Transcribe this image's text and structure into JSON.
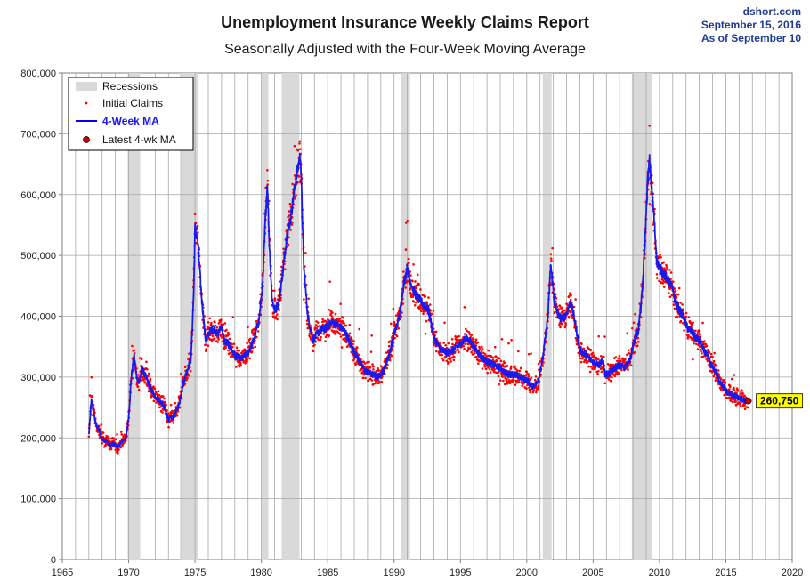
{
  "chart_data": {
    "type": "line",
    "title": "Unemployment Insurance Weekly Claims Report",
    "subtitle": "Seasonally Adjusted with the Four-Week Moving Average",
    "source_lines": [
      "dshort.com",
      "September 15, 2016",
      "As of September 10"
    ],
    "xlim": [
      1965,
      2020
    ],
    "ylim": [
      0,
      800000
    ],
    "x_ticks": [
      1965,
      1970,
      1975,
      1980,
      1985,
      1990,
      1995,
      2000,
      2005,
      2010,
      2015,
      2020
    ],
    "y_ticks": [
      0,
      100000,
      200000,
      300000,
      400000,
      500000,
      600000,
      700000,
      800000
    ],
    "y_tick_labels": [
      "0",
      "100,000",
      "200,000",
      "300,000",
      "400,000",
      "500,000",
      "600,000",
      "700,000",
      "800,000"
    ],
    "grid": true,
    "legend_position": "top-left",
    "recessions": [
      [
        1969.92,
        1970.87
      ],
      [
        1973.87,
        1975.2
      ],
      [
        1980.0,
        1980.53
      ],
      [
        1981.53,
        1982.87
      ],
      [
        1990.53,
        1991.2
      ],
      [
        2001.2,
        2001.87
      ],
      [
        2007.92,
        2009.45
      ]
    ],
    "series": [
      {
        "name": "4-Week MA",
        "x": [
          1967.0,
          1967.2,
          1967.5,
          1967.8,
          1968.0,
          1968.3,
          1968.6,
          1968.9,
          1969.2,
          1969.5,
          1969.8,
          1970.0,
          1970.2,
          1970.4,
          1970.6,
          1970.8,
          1971.0,
          1971.3,
          1971.6,
          1971.9,
          1972.2,
          1972.6,
          1973.0,
          1973.4,
          1973.8,
          1974.1,
          1974.4,
          1974.7,
          1974.9,
          1975.0,
          1975.2,
          1975.5,
          1975.8,
          1976.1,
          1976.4,
          1976.7,
          1977.0,
          1977.2,
          1977.5,
          1978.0,
          1978.5,
          1979.0,
          1979.4,
          1979.8,
          1980.1,
          1980.3,
          1980.45,
          1980.6,
          1980.8,
          1981.0,
          1981.3,
          1981.6,
          1981.9,
          1982.2,
          1982.5,
          1982.8,
          1982.95,
          1983.2,
          1983.5,
          1983.9,
          1984.3,
          1984.8,
          1985.3,
          1985.8,
          1986.3,
          1986.8,
          1987.3,
          1987.8,
          1988.3,
          1988.8,
          1989.2,
          1989.6,
          1990.0,
          1990.4,
          1990.7,
          1991.0,
          1991.2,
          1991.5,
          1991.8,
          1992.2,
          1992.6,
          1993.0,
          1993.5,
          1994.0,
          1994.5,
          1995.0,
          1995.5,
          1996.0,
          1996.5,
          1997.0,
          1997.5,
          1998.0,
          1998.5,
          1999.0,
          1999.5,
          2000.0,
          2000.4,
          2000.8,
          2001.2,
          2001.6,
          2001.8,
          2002.1,
          2002.4,
          2002.7,
          2003.0,
          2003.3,
          2003.6,
          2004.0,
          2004.5,
          2005.0,
          2005.5,
          2005.7,
          2005.9,
          2006.2,
          2006.6,
          2007.0,
          2007.4,
          2007.8,
          2008.1,
          2008.4,
          2008.7,
          2008.9,
          2009.1,
          2009.25,
          2009.4,
          2009.6,
          2009.8,
          2010.0,
          2010.3,
          2010.6,
          2010.9,
          2011.2,
          2011.5,
          2011.8,
          2012.1,
          2012.4,
          2012.7,
          2013.0,
          2013.3,
          2013.6,
          2013.9,
          2014.2,
          2014.5,
          2014.8,
          2015.1,
          2015.4,
          2015.7,
          2016.0,
          2016.3,
          2016.69
        ],
        "values": [
          205000,
          262000,
          225000,
          210000,
          198000,
          195000,
          188000,
          190000,
          184000,
          195000,
          200000,
          235000,
          300000,
          335000,
          300000,
          290000,
          315000,
          300000,
          285000,
          270000,
          265000,
          255000,
          230000,
          235000,
          255000,
          290000,
          310000,
          330000,
          440000,
          545000,
          525000,
          430000,
          360000,
          375000,
          380000,
          370000,
          385000,
          360000,
          355000,
          335000,
          330000,
          340000,
          360000,
          390000,
          450000,
          560000,
          620000,
          520000,
          430000,
          410000,
          420000,
          470000,
          530000,
          560000,
          610000,
          650000,
          665000,
          480000,
          400000,
          360000,
          375000,
          380000,
          390000,
          385000,
          375000,
          350000,
          330000,
          310000,
          305000,
          300000,
          310000,
          335000,
          370000,
          400000,
          450000,
          480000,
          460000,
          440000,
          430000,
          420000,
          410000,
          365000,
          345000,
          340000,
          345000,
          355000,
          365000,
          350000,
          335000,
          325000,
          320000,
          315000,
          305000,
          305000,
          300000,
          295000,
          285000,
          290000,
          330000,
          400000,
          485000,
          420000,
          400000,
          395000,
          405000,
          425000,
          395000,
          345000,
          335000,
          325000,
          320000,
          330000,
          305000,
          305000,
          315000,
          320000,
          315000,
          330000,
          360000,
          375000,
          440000,
          520000,
          620000,
          655000,
          615000,
          560000,
          490000,
          480000,
          470000,
          460000,
          450000,
          425000,
          410000,
          400000,
          380000,
          375000,
          365000,
          360000,
          345000,
          335000,
          320000,
          310000,
          295000,
          285000,
          275000,
          272000,
          268000,
          265000,
          262000,
          260750
        ]
      },
      {
        "name": "Latest 4-wk MA",
        "x": [
          2016.69
        ],
        "values": [
          260750
        ],
        "label": "260,750"
      }
    ]
  },
  "legend": {
    "items": [
      {
        "label": "Recessions",
        "symbol": "band",
        "color": "#d9d9d9"
      },
      {
        "label": "Initial Claims",
        "symbol": "dot",
        "color": "#ff0000"
      },
      {
        "label": "4-Week MA",
        "symbol": "line",
        "color": "#0000ee"
      },
      {
        "label": "Latest 4-wk MA",
        "symbol": "marker",
        "color": "#cc0000"
      }
    ]
  },
  "colors": {
    "ma_line": "#1a1aee",
    "claims_dots": "#ff0000",
    "recession_band": "#d9d9d9",
    "grid": "#a6a6a6",
    "callout_bg": "#ffff00"
  }
}
